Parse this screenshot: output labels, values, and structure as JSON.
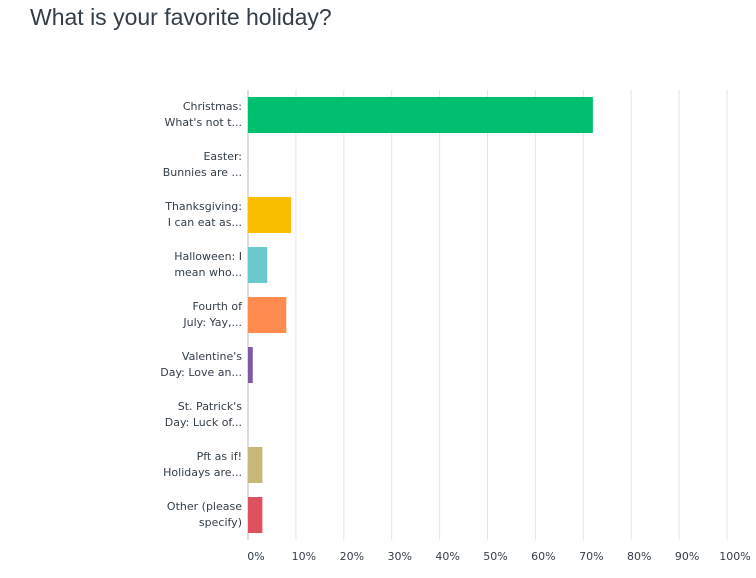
{
  "chart_data": {
    "type": "hbar",
    "title": "What is your favorite holiday?",
    "categories": [
      "Christmas:\nWhat's not t...",
      "Easter:\nBunnies are ...",
      "Thanksgiving:\nI can eat as...",
      "Halloween: I\nmean who...",
      "Fourth of\nJuly: Yay,...",
      "Valentine's\nDay: Love an...",
      "St. Patrick's\nDay: Luck of...",
      "Pft as if!\nHolidays are...",
      "Other (please\nspecify)"
    ],
    "values": [
      72,
      0,
      9,
      4,
      8,
      1,
      0,
      3,
      3
    ],
    "colors": [
      "#00bf6f",
      "#00bf6f",
      "#f9be00",
      "#6bc8cd",
      "#ff8b4f",
      "#7d5ba6",
      "#507cb6",
      "#c7b879",
      "#e05160"
    ],
    "xlim": [
      0,
      100
    ],
    "xticks": [
      {
        "value": 0,
        "label": "0%"
      },
      {
        "value": 10,
        "label": "10%"
      },
      {
        "value": 20,
        "label": "20%"
      },
      {
        "value": 30,
        "label": "30%"
      },
      {
        "value": 40,
        "label": "40%"
      },
      {
        "value": 50,
        "label": "50%"
      },
      {
        "value": 60,
        "label": "60%"
      },
      {
        "value": 70,
        "label": "70%"
      },
      {
        "value": 80,
        "label": "80%"
      },
      {
        "value": 90,
        "label": "90%"
      },
      {
        "value": 100,
        "label": "100%"
      }
    ],
    "grid": true
  }
}
